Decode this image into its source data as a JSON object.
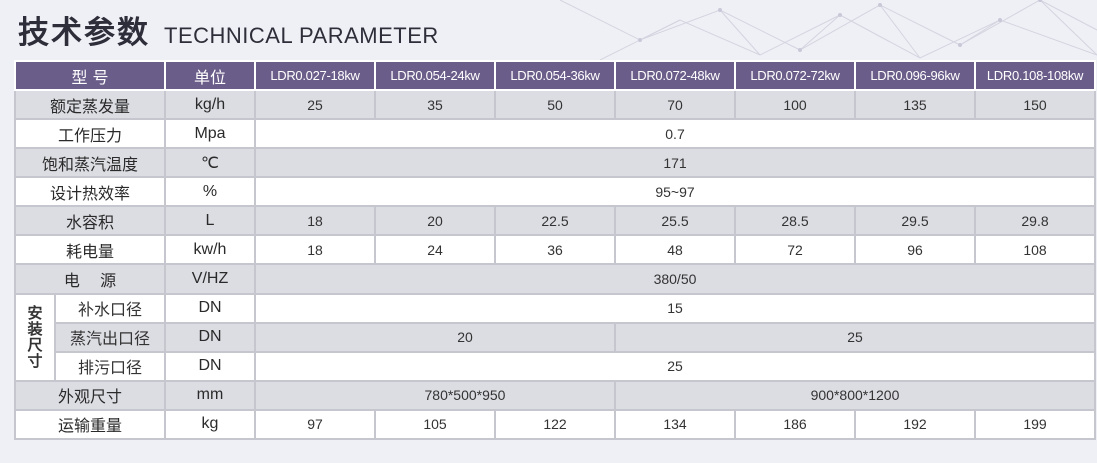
{
  "header": {
    "title_cn": "技术参数",
    "title_en": "TECHNICAL PARAMETER"
  },
  "colors": {
    "header_bg": "#6b5d8a",
    "row_gray": "#dcdde3",
    "row_white": "#ffffff",
    "border": "#c6c6ce"
  },
  "table": {
    "head": {
      "label": "型  号",
      "unit": "单位",
      "models": [
        "LDR0.027-18kw",
        "LDR0.054-24kw",
        "LDR0.054-36kw",
        "LDR0.072-48kw",
        "LDR0.072-72kw",
        "LDR0.096-96kw",
        "LDR0.108-108kw"
      ]
    },
    "rows": {
      "steam": {
        "label": "额定蒸发量",
        "unit": "kg/h",
        "values": [
          "25",
          "35",
          "50",
          "70",
          "100",
          "135",
          "150"
        ]
      },
      "pressure": {
        "label": "工作压力",
        "unit": "Mpa",
        "value": "0.7"
      },
      "temp": {
        "label": "饱和蒸汽温度",
        "unit": "℃",
        "value": "171"
      },
      "efficiency": {
        "label": "设计热效率",
        "unit": "%",
        "value": "95~97"
      },
      "water": {
        "label": "水容积",
        "unit": "L",
        "values": [
          "18",
          "20",
          "22.5",
          "25.5",
          "28.5",
          "29.5",
          "29.8"
        ]
      },
      "power": {
        "label": "耗电量",
        "unit": "kw/h",
        "values": [
          "18",
          "24",
          "36",
          "48",
          "72",
          "96",
          "108"
        ]
      },
      "supply": {
        "label": "电    源",
        "unit": "V/HZ",
        "value": "380/50"
      },
      "install": {
        "group_label": [
          "安",
          "装",
          "尺",
          "寸"
        ],
        "inlet": {
          "label": "补水口径",
          "unit": "DN",
          "value": "15"
        },
        "outlet": {
          "label": "蒸汽出口径",
          "unit": "DN",
          "values": [
            "20",
            "25"
          ]
        },
        "drain": {
          "label": "排污口径",
          "unit": "DN",
          "value": "25"
        }
      },
      "size": {
        "label": "外观尺寸",
        "unit": "mm",
        "values": [
          "780*500*950",
          "900*800*1200"
        ]
      },
      "weight": {
        "label": "运输重量",
        "unit": "kg",
        "values": [
          "97",
          "105",
          "122",
          "134",
          "186",
          "192",
          "199"
        ]
      }
    }
  }
}
